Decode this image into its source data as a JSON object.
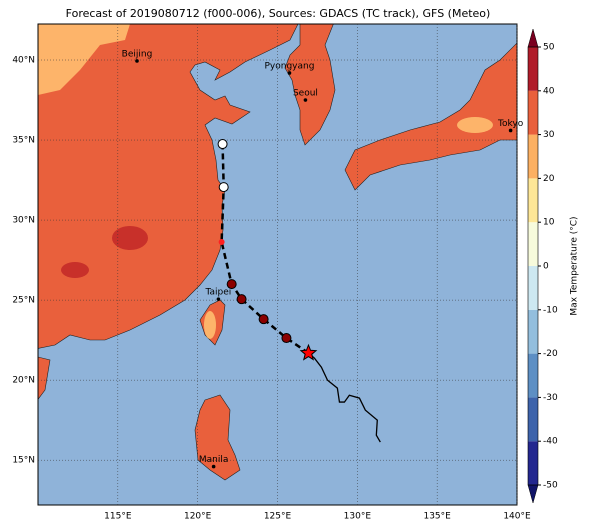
{
  "title": "Forecast of 2019080712 (f000-006), Sources: GDACS (TC track), GFS (Meteo)",
  "map": {
    "xlim": [
      110,
      140
    ],
    "ylim": [
      12.2,
      42.25
    ],
    "xticks": [
      {
        "value": 115,
        "label": "115°E"
      },
      {
        "value": 120,
        "label": "120°E"
      },
      {
        "value": 125,
        "label": "125°E"
      },
      {
        "value": 130,
        "label": "130°E"
      },
      {
        "value": 135,
        "label": "135°E"
      },
      {
        "value": 140,
        "label": "140°E"
      }
    ],
    "yticks": [
      {
        "value": 15,
        "label": "15°N"
      },
      {
        "value": 20,
        "label": "20°N"
      },
      {
        "value": 25,
        "label": "25°N"
      },
      {
        "value": 30,
        "label": "30°N"
      },
      {
        "value": 35,
        "label": "35°N"
      },
      {
        "value": 40,
        "label": "40°N"
      }
    ],
    "ocean_color": "#8fb3d9"
  },
  "cities": [
    {
      "name": "Beijing",
      "lon": 116.2,
      "lat": 39.94
    },
    {
      "name": "Pyongyang",
      "lon": 125.75,
      "lat": 39.19
    },
    {
      "name": "Seoul",
      "lon": 126.75,
      "lat": 37.5
    },
    {
      "name": "Tokyo",
      "lon": 139.6,
      "lat": 35.6
    },
    {
      "name": "Taipei",
      "lon": 121.3,
      "lat": 25.06
    },
    {
      "name": "Manila",
      "lon": 121.0,
      "lat": 14.6
    }
  ],
  "past_track": {
    "color": "#000000",
    "lon": [
      131.44,
      131.19,
      131.25,
      130.5,
      130.13,
      129.5,
      129.19,
      128.88,
      128.75,
      128.13,
      127.75,
      127.31,
      126.94
    ],
    "lat": [
      16.13,
      16.56,
      17.5,
      18.13,
      18.88,
      19.06,
      18.63,
      18.63,
      19.5,
      20.0,
      20.81,
      21.38,
      21.69
    ]
  },
  "forecast_track": {
    "color": "#000000",
    "lon": [
      126.94,
      125.56,
      124.13,
      122.75,
      122.13,
      121.5,
      121.63,
      121.56
    ],
    "lat": [
      21.69,
      22.63,
      23.81,
      25.06,
      26.0,
      28.63,
      32.06,
      34.75
    ],
    "marker_colors": [
      "#ff0000",
      "#8b0000",
      "#8b0000",
      "#8b0000",
      "#8b0000",
      "#ff2020",
      "#ffffff",
      "#ffffff"
    ]
  },
  "colorbar": {
    "label": "Max Temperature (°C)",
    "ticks": [
      -50,
      -40,
      -30,
      -20,
      -10,
      0,
      10,
      20,
      30,
      40,
      50
    ],
    "colors": [
      "#23278f",
      "#3d63ab",
      "#5d8fc4",
      "#93bedd",
      "#cde8f1",
      "#f7fbdc",
      "#fee797",
      "#fcb062",
      "#e9603c",
      "#b01c2a"
    ],
    "extend_colors": [
      "#111468",
      "#7a0020"
    ]
  }
}
